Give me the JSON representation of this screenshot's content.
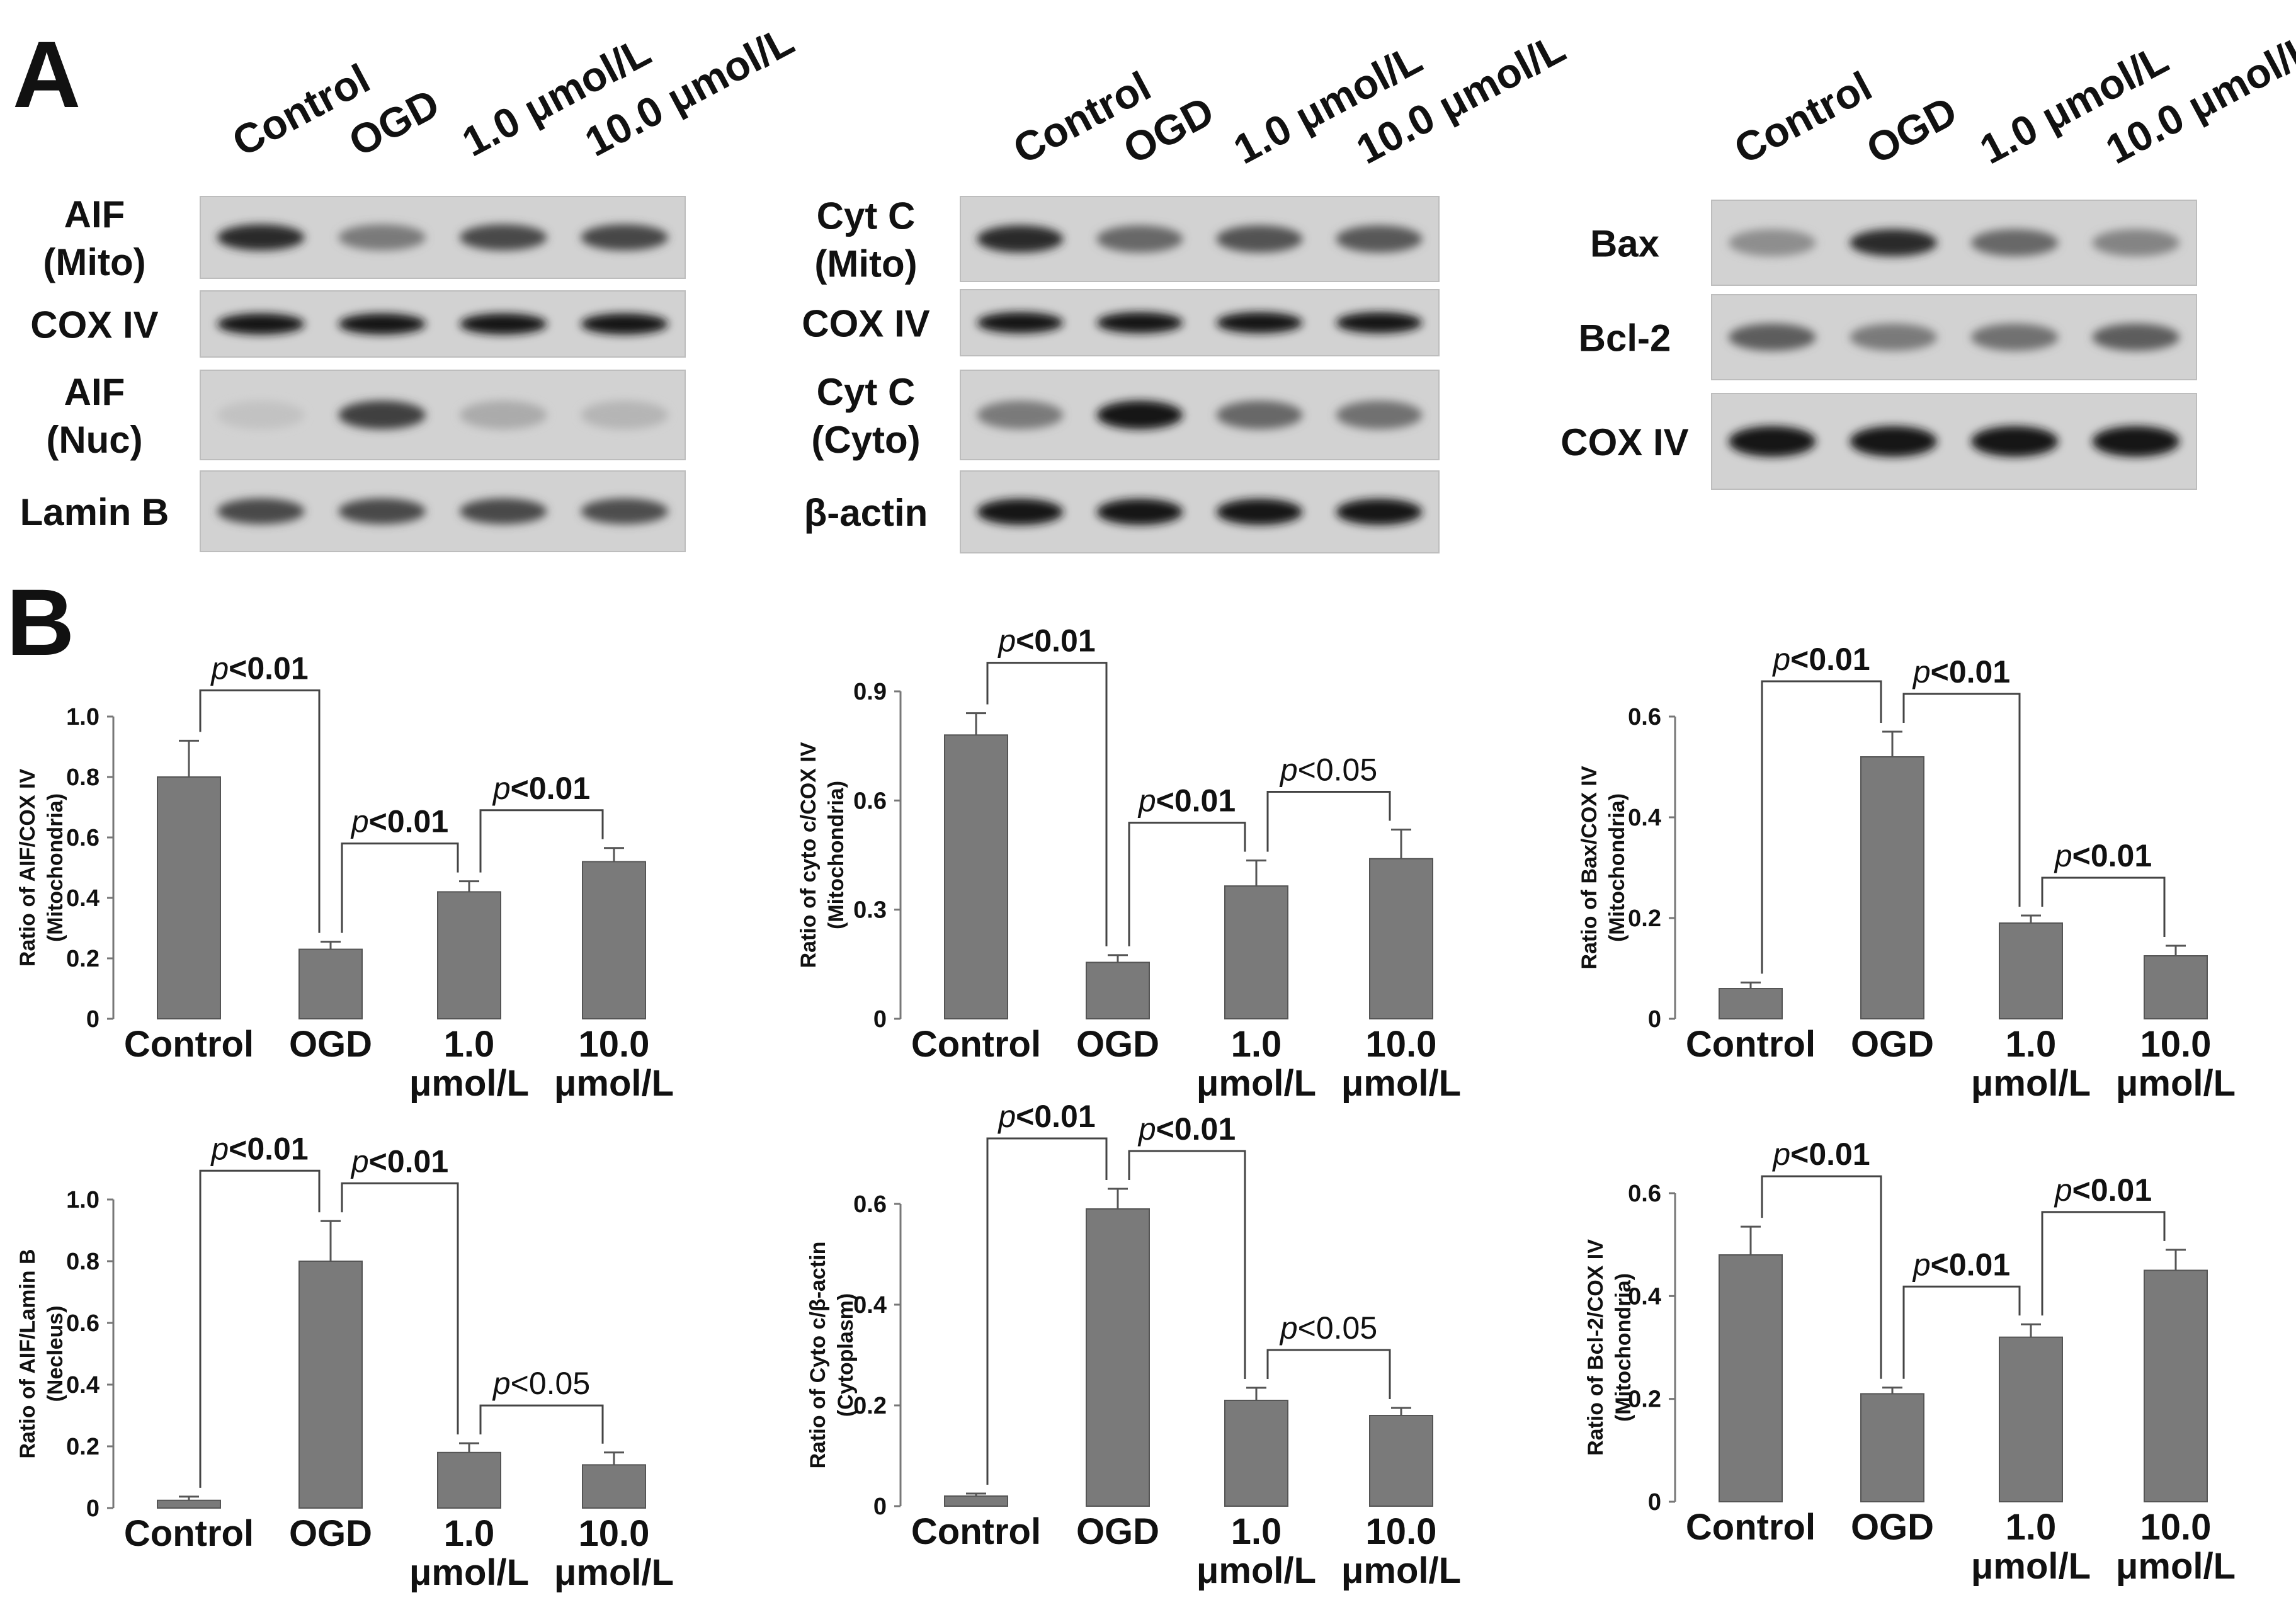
{
  "panel_labels": {
    "a": "A",
    "b": "B"
  },
  "lanes": [
    "Control",
    "OGD",
    "1.0 μmol/L",
    "10.0 μmol/L"
  ],
  "blots": [
    {
      "rows": [
        {
          "label": [
            "AIF",
            "(Mito)"
          ],
          "intensity": [
            0.85,
            0.45,
            0.7,
            0.72
          ]
        },
        {
          "label": [
            "COX IV"
          ],
          "intensity": [
            0.95,
            0.95,
            0.95,
            0.95
          ]
        },
        {
          "label": [
            "AIF",
            "(Nuc)"
          ],
          "intensity": [
            0.08,
            0.75,
            0.2,
            0.15
          ]
        },
        {
          "label": [
            "Lamin B"
          ],
          "intensity": [
            0.7,
            0.7,
            0.7,
            0.68
          ]
        }
      ]
    },
    {
      "rows": [
        {
          "label": [
            "Cyt C",
            "(Mito)"
          ],
          "intensity": [
            0.85,
            0.55,
            0.65,
            0.62
          ]
        },
        {
          "label": [
            "COX IV"
          ],
          "intensity": [
            0.95,
            0.95,
            0.95,
            0.95
          ]
        },
        {
          "label": [
            "Cyt C",
            "(Cyto)"
          ],
          "intensity": [
            0.45,
            0.95,
            0.55,
            0.5
          ]
        },
        {
          "label": [
            "β-actin"
          ],
          "intensity": [
            0.95,
            0.95,
            0.95,
            0.95
          ]
        }
      ]
    },
    {
      "rows": [
        {
          "label": [
            "Bax"
          ],
          "intensity": [
            0.35,
            0.85,
            0.55,
            0.4
          ]
        },
        {
          "label": [
            "Bcl-2"
          ],
          "intensity": [
            0.6,
            0.45,
            0.5,
            0.6
          ]
        },
        {
          "label": [
            "COX IV"
          ],
          "intensity": [
            0.98,
            0.98,
            0.98,
            0.98
          ]
        }
      ]
    }
  ],
  "chart_data": [
    {
      "type": "bar",
      "categories": [
        "Control",
        "OGD",
        "1.0 μmol/L",
        "10.0 μmol/L"
      ],
      "values": [
        0.8,
        0.23,
        0.42,
        0.52
      ],
      "errors": [
        0.12,
        0.025,
        0.035,
        0.045
      ],
      "ylabel": [
        "Ratio of AIF/COX IV",
        "(Mitochondria)"
      ],
      "ylim": [
        0,
        1.0
      ],
      "yticks": [
        "0",
        "0.2",
        "0.4",
        "0.6",
        "0.8",
        "1.0"
      ],
      "comparisons": [
        {
          "from": 0,
          "to": 1,
          "text": "p<0.01",
          "bold": true
        },
        {
          "from": 1,
          "to": 2,
          "text": "p<0.01",
          "bold": true
        },
        {
          "from": 2,
          "to": 3,
          "text": "p<0.01",
          "bold": true
        }
      ]
    },
    {
      "type": "bar",
      "categories": [
        "Control",
        "OGD",
        "1.0 μmol/L",
        "10.0 μmol/L"
      ],
      "values": [
        0.78,
        0.155,
        0.365,
        0.44
      ],
      "errors": [
        0.06,
        0.02,
        0.07,
        0.08
      ],
      "ylabel": [
        "Ratio of cyto c/COX IV",
        "(Mitochondria)"
      ],
      "ylim": [
        0,
        0.9
      ],
      "yticks": [
        "0",
        "0.3",
        "0.6",
        "0.9"
      ],
      "comparisons": [
        {
          "from": 0,
          "to": 1,
          "text": "p<0.01",
          "bold": true
        },
        {
          "from": 1,
          "to": 2,
          "text": "p<0.01",
          "bold": true
        },
        {
          "from": 2,
          "to": 3,
          "text": "p<0.05",
          "bold": false
        }
      ]
    },
    {
      "type": "bar",
      "categories": [
        "Control",
        "OGD",
        "1.0 μmol/L",
        "10.0 μmol/L"
      ],
      "values": [
        0.06,
        0.52,
        0.19,
        0.125
      ],
      "errors": [
        0.012,
        0.05,
        0.015,
        0.02
      ],
      "ylabel": [
        "Ratio of Bax/COX IV",
        "(Mitochondria)"
      ],
      "ylim": [
        0,
        0.6
      ],
      "yticks": [
        "0",
        "0.2",
        "0.4",
        "0.6"
      ],
      "comparisons": [
        {
          "from": 0,
          "to": 1,
          "text": "p<0.01",
          "bold": true
        },
        {
          "from": 1,
          "to": 2,
          "text": "p<0.01",
          "bold": true
        },
        {
          "from": 2,
          "to": 3,
          "text": "p<0.01",
          "bold": true
        }
      ]
    },
    {
      "type": "bar",
      "categories": [
        "Control",
        "OGD",
        "1.0 μmol/L",
        "10.0 μmol/L"
      ],
      "values": [
        0.025,
        0.8,
        0.18,
        0.14
      ],
      "errors": [
        0.012,
        0.13,
        0.03,
        0.04
      ],
      "ylabel": [
        "Ratio of AIF/Lamin B",
        "(Necleus)"
      ],
      "ylim": [
        0,
        1.0
      ],
      "yticks": [
        "0",
        "0.2",
        "0.4",
        "0.6",
        "0.8",
        "1.0"
      ],
      "comparisons": [
        {
          "from": 0,
          "to": 1,
          "text": "p<0.01",
          "bold": true
        },
        {
          "from": 1,
          "to": 2,
          "text": "p<0.01",
          "bold": true
        },
        {
          "from": 2,
          "to": 3,
          "text": "p<0.05",
          "bold": false
        }
      ]
    },
    {
      "type": "bar",
      "categories": [
        "Control",
        "OGD",
        "1.0 μmol/L",
        "10.0 μmol/L"
      ],
      "values": [
        0.02,
        0.59,
        0.21,
        0.18
      ],
      "errors": [
        0.005,
        0.04,
        0.025,
        0.015
      ],
      "ylabel": [
        "Ratio of Cyto c/β-actin",
        "(Cytoplasm)"
      ],
      "ylim": [
        0,
        0.6
      ],
      "yticks": [
        "0",
        "0.2",
        "0.4",
        "0.6"
      ],
      "comparisons": [
        {
          "from": 0,
          "to": 1,
          "text": "p<0.01",
          "bold": true
        },
        {
          "from": 1,
          "to": 2,
          "text": "p<0.01",
          "bold": true
        },
        {
          "from": 2,
          "to": 3,
          "text": "p<0.05",
          "bold": false
        }
      ]
    },
    {
      "type": "bar",
      "categories": [
        "Control",
        "OGD",
        "1.0 μmol/L",
        "10.0 μmol/L"
      ],
      "values": [
        0.48,
        0.21,
        0.32,
        0.45
      ],
      "errors": [
        0.055,
        0.012,
        0.025,
        0.04
      ],
      "ylabel": [
        "Ratio of Bcl-2/COX IV",
        "(Mitochondria)"
      ],
      "ylim": [
        0,
        0.6
      ],
      "yticks": [
        "0",
        "0.2",
        "0.4",
        "0.6"
      ],
      "comparisons": [
        {
          "from": 0,
          "to": 1,
          "text": "p<0.01",
          "bold": true
        },
        {
          "from": 1,
          "to": 2,
          "text": "p<0.01",
          "bold": true
        },
        {
          "from": 2,
          "to": 3,
          "text": "p<0.01",
          "bold": true
        }
      ]
    }
  ]
}
